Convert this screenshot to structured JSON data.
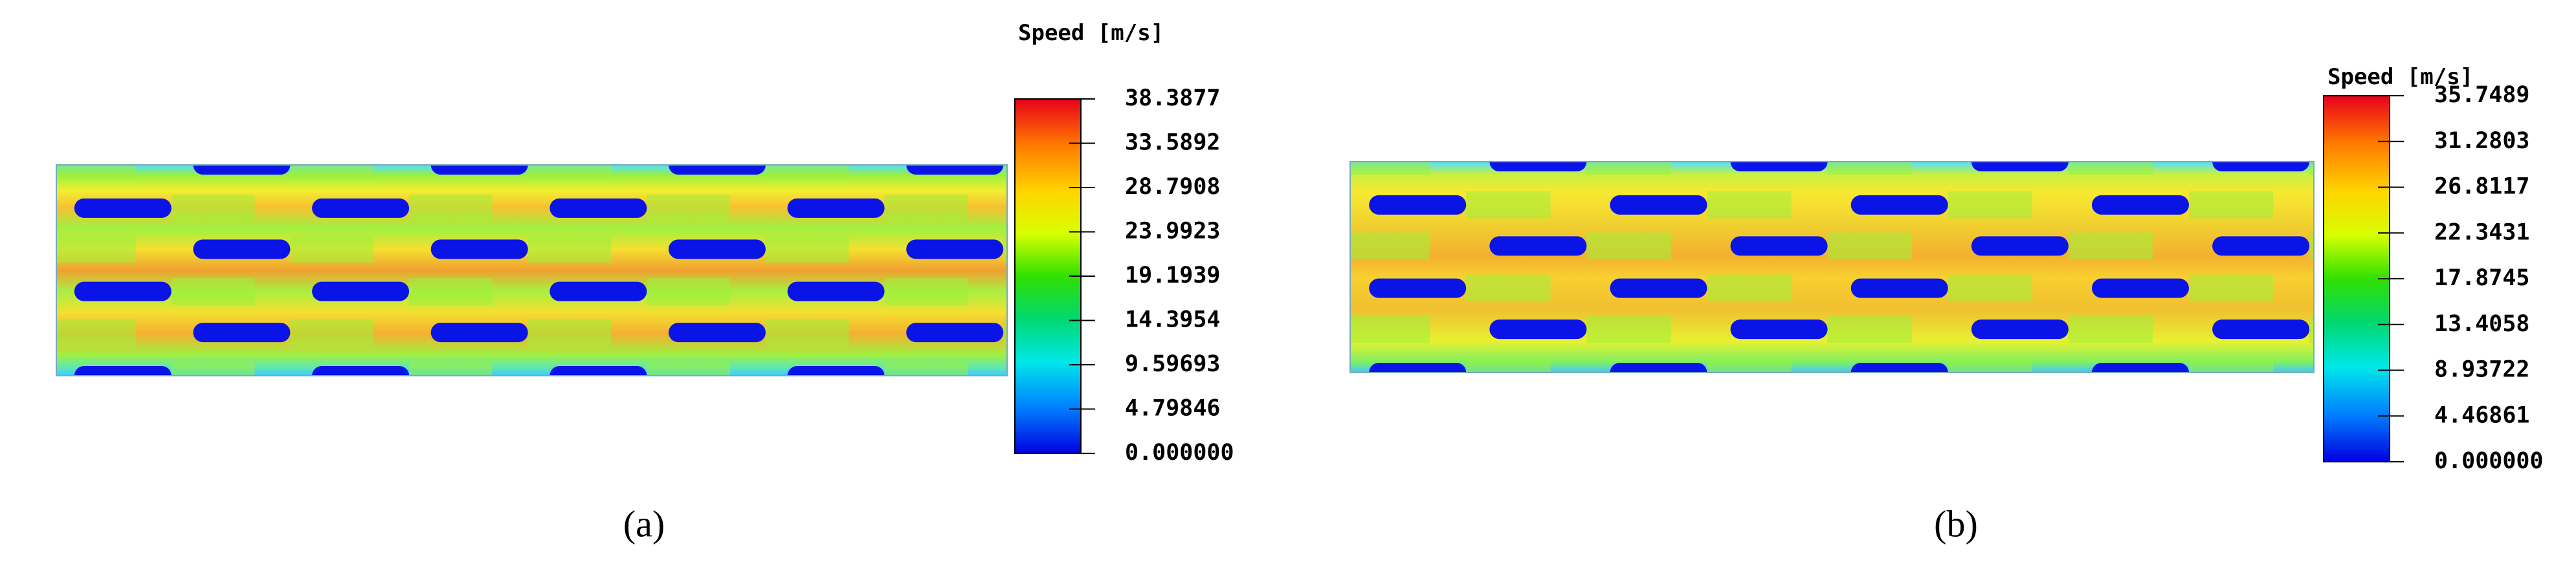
{
  "panels": [
    {
      "colorbar": {
        "title": "Speed [m/s]",
        "ticks": [
          "38.3877",
          "33.5892",
          "28.7908",
          "23.9923",
          "19.1939",
          "14.3954",
          "9.59693",
          "4.79846",
          "0.000000"
        ]
      },
      "caption": "(a)"
    },
    {
      "colorbar": {
        "title": "Speed [m/s]",
        "ticks": [
          "35.7489",
          "31.2803",
          "26.8117",
          "22.3431",
          "17.8745",
          "13.4058",
          "8.93722",
          "4.46861",
          "0.000000"
        ]
      },
      "caption": "(b)"
    }
  ]
}
